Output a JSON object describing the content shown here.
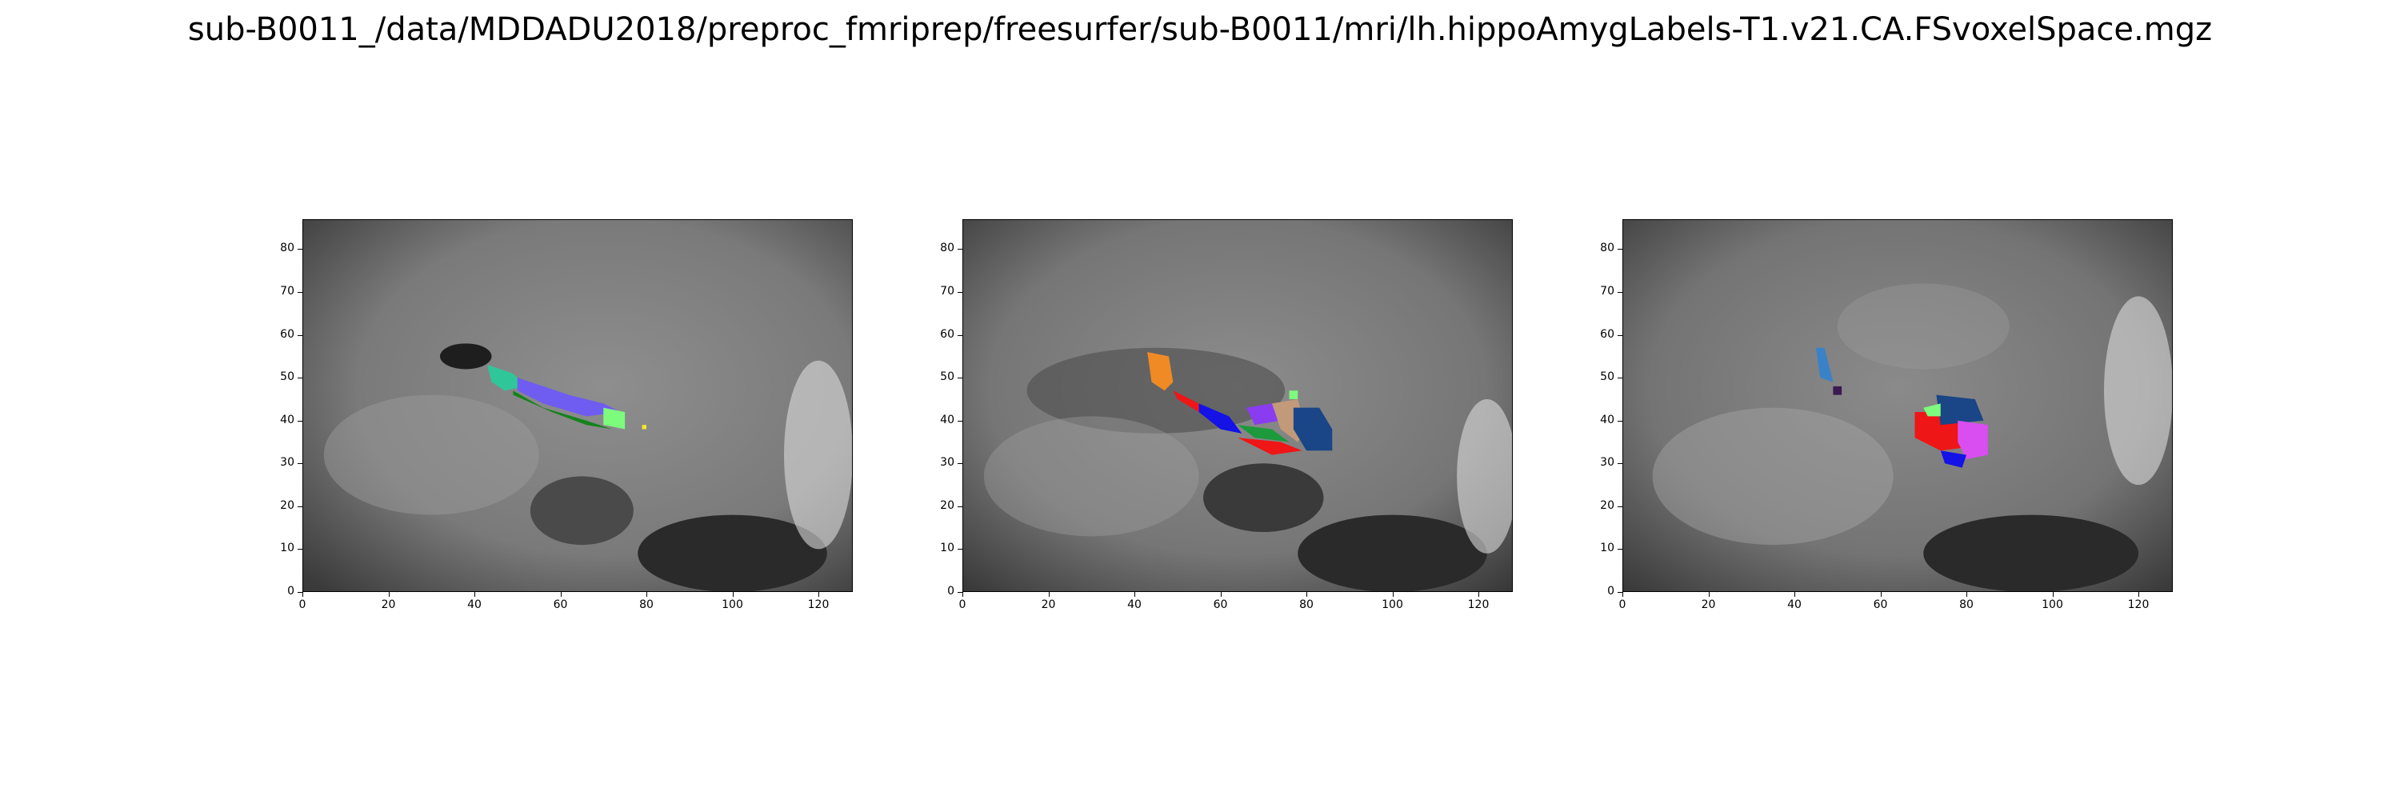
{
  "figure": {
    "title": "sub-B0011_/data/MDDADU2018/preproc_fmriprep/freesurfer/sub-B0011/mri/lh.hippoAmygLabels-T1.v21.CA.FSvoxelSpace.mgz"
  },
  "axes": {
    "x_ticks": [
      "0",
      "20",
      "40",
      "60",
      "80",
      "100",
      "120"
    ],
    "y_ticks": [
      "0",
      "10",
      "20",
      "30",
      "40",
      "50",
      "60",
      "70",
      "80"
    ],
    "x_range": [
      0,
      128
    ],
    "y_range": [
      0,
      87
    ]
  },
  "panels": [
    {
      "name": "sagittal-view",
      "segments": [
        {
          "label": "teal",
          "color": "#2fc79a",
          "points": [
            [
              43,
              53
            ],
            [
              49,
              51
            ],
            [
              52,
              48
            ],
            [
              47,
              47
            ],
            [
              44,
              49
            ]
          ]
        },
        {
          "label": "blue-violet",
          "color": "#6f5cf0",
          "points": [
            [
              50,
              50
            ],
            [
              62,
              46
            ],
            [
              70,
              44
            ],
            [
              74,
              42
            ],
            [
              66,
              41
            ],
            [
              56,
              44
            ],
            [
              50,
              47
            ]
          ]
        },
        {
          "label": "green",
          "color": "#15831c",
          "points": [
            [
              49,
              46
            ],
            [
              58,
              42
            ],
            [
              66,
              39
            ],
            [
              72,
              38
            ],
            [
              66,
              40
            ],
            [
              56,
              43
            ],
            [
              49,
              47
            ]
          ]
        },
        {
          "label": "light-green",
          "color": "#7dfb7d",
          "points": [
            [
              70,
              43
            ],
            [
              75,
              42
            ],
            [
              75,
              38
            ],
            [
              70,
              39
            ]
          ]
        },
        {
          "label": "yellow-dot",
          "color": "#f5e52c",
          "points": [
            [
              79,
              39
            ],
            [
              80,
              39
            ],
            [
              80,
              38
            ],
            [
              79,
              38
            ]
          ]
        }
      ]
    },
    {
      "name": "coronal-view",
      "segments": [
        {
          "label": "orange",
          "color": "#ef8a25",
          "points": [
            [
              43,
              56
            ],
            [
              48,
              55
            ],
            [
              49,
              49
            ],
            [
              47,
              47
            ],
            [
              44,
              49
            ]
          ]
        },
        {
          "label": "red-upper",
          "color": "#ee1616",
          "points": [
            [
              49,
              47
            ],
            [
              55,
              44
            ],
            [
              55,
              42
            ],
            [
              50,
              45
            ]
          ]
        },
        {
          "label": "blue",
          "color": "#1412e6",
          "points": [
            [
              55,
              44
            ],
            [
              62,
              41
            ],
            [
              65,
              37
            ],
            [
              60,
              38
            ],
            [
              55,
              42
            ]
          ]
        },
        {
          "label": "purple",
          "color": "#8a3cf0",
          "points": [
            [
              66,
              43
            ],
            [
              72,
              44
            ],
            [
              74,
              40
            ],
            [
              68,
              39
            ]
          ]
        },
        {
          "label": "tan",
          "color": "#c29a7a",
          "points": [
            [
              72,
              44
            ],
            [
              78,
              45
            ],
            [
              80,
              38
            ],
            [
              78,
              35
            ],
            [
              74,
              38
            ]
          ]
        },
        {
          "label": "green",
          "color": "#1d9a3c",
          "points": [
            [
              64,
              39
            ],
            [
              72,
              38
            ],
            [
              76,
              35
            ],
            [
              68,
              36
            ]
          ]
        },
        {
          "label": "red-lower",
          "color": "#ee1616",
          "points": [
            [
              64,
              36
            ],
            [
              74,
              35
            ],
            [
              79,
              33
            ],
            [
              72,
              32
            ]
          ]
        },
        {
          "label": "navy",
          "color": "#1a4586",
          "points": [
            [
              77,
              43
            ],
            [
              83,
              43
            ],
            [
              86,
              38
            ],
            [
              86,
              33
            ],
            [
              80,
              33
            ],
            [
              77,
              38
            ]
          ]
        },
        {
          "label": "light-green",
          "color": "#7dfb7d",
          "points": [
            [
              76,
              47
            ],
            [
              78,
              47
            ],
            [
              78,
              45
            ],
            [
              76,
              45
            ]
          ]
        }
      ]
    },
    {
      "name": "axial-view",
      "segments": [
        {
          "label": "steel-blue",
          "color": "#3a82c8",
          "points": [
            [
              45,
              57
            ],
            [
              47,
              57
            ],
            [
              49,
              49
            ],
            [
              46,
              50
            ]
          ]
        },
        {
          "label": "dark-purple",
          "color": "#3a1a52",
          "points": [
            [
              49,
              48
            ],
            [
              51,
              48
            ],
            [
              51,
              46
            ],
            [
              49,
              46
            ]
          ]
        },
        {
          "label": "red",
          "color": "#ee1616",
          "points": [
            [
              68,
              42
            ],
            [
              76,
              42
            ],
            [
              82,
              34
            ],
            [
              74,
              33
            ],
            [
              68,
              36
            ]
          ]
        },
        {
          "label": "navy",
          "color": "#1a4586",
          "points": [
            [
              73,
              46
            ],
            [
              82,
              45
            ],
            [
              84,
              40
            ],
            [
              74,
              39
            ]
          ]
        },
        {
          "label": "magenta",
          "color": "#d84ef0",
          "points": [
            [
              78,
              40
            ],
            [
              85,
              39
            ],
            [
              85,
              32
            ],
            [
              80,
              31
            ],
            [
              78,
              35
            ]
          ]
        },
        {
          "label": "blue",
          "color": "#1412e6",
          "points": [
            [
              74,
              33
            ],
            [
              80,
              32
            ],
            [
              79,
              29
            ],
            [
              75,
              30
            ]
          ]
        },
        {
          "label": "light-green",
          "color": "#7dfb7d",
          "points": [
            [
              70,
              43
            ],
            [
              74,
              44
            ],
            [
              74,
              41
            ],
            [
              71,
              41
            ]
          ]
        }
      ]
    }
  ]
}
